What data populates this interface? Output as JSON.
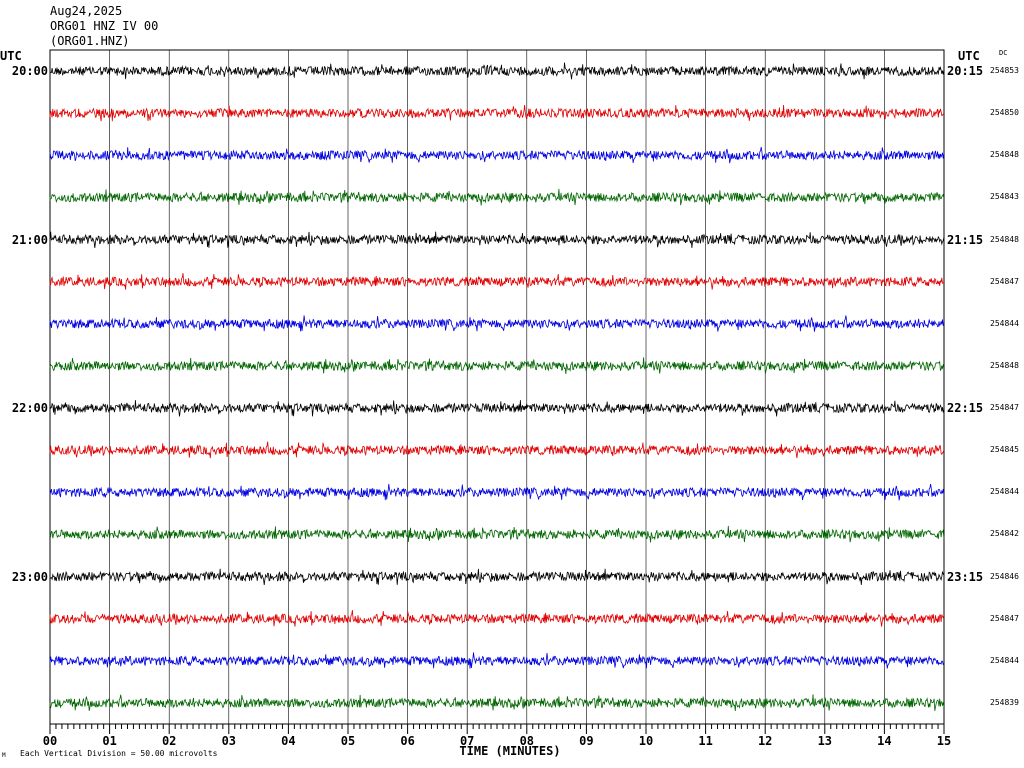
{
  "header": {
    "date": "Aug24,2025",
    "station": "ORG01 HNZ IV 00",
    "channel": "(ORG01.HNZ)"
  },
  "labels": {
    "utc_left": "UTC",
    "utc_right": "UTC",
    "dc": "DC",
    "footer": "Each Vertical Division =   50.00 microvolts",
    "mark": "M"
  },
  "chart_data": {
    "type": "line",
    "title": "",
    "xlabel": "TIME (MINUTES)",
    "ylabel": "",
    "xlim": [
      0,
      15
    ],
    "x_ticks": [
      "00",
      "01",
      "02",
      "03",
      "04",
      "05",
      "06",
      "07",
      "08",
      "09",
      "10",
      "11",
      "12",
      "13",
      "14",
      "15"
    ],
    "colors": [
      "#000000",
      "#e00000",
      "#0000e0",
      "#006600"
    ],
    "rows": [
      {
        "left": "20:00",
        "right": "20:15",
        "dc": "254853"
      },
      {
        "left": "",
        "right": "",
        "dc": "254850"
      },
      {
        "left": "",
        "right": "",
        "dc": "254848"
      },
      {
        "left": "",
        "right": "",
        "dc": "254843"
      },
      {
        "left": "21:00",
        "right": "21:15",
        "dc": "254848"
      },
      {
        "left": "",
        "right": "",
        "dc": "254847"
      },
      {
        "left": "",
        "right": "",
        "dc": "254844"
      },
      {
        "left": "",
        "right": "",
        "dc": "254848"
      },
      {
        "left": "22:00",
        "right": "22:15",
        "dc": "254847"
      },
      {
        "left": "",
        "right": "",
        "dc": "254845"
      },
      {
        "left": "",
        "right": "",
        "dc": "254844"
      },
      {
        "left": "",
        "right": "",
        "dc": "254842"
      },
      {
        "left": "23:00",
        "right": "23:15",
        "dc": "254846"
      },
      {
        "left": "",
        "right": "",
        "dc": "254847"
      },
      {
        "left": "",
        "right": "",
        "dc": "254844"
      },
      {
        "left": "",
        "right": "",
        "dc": "254839"
      }
    ]
  }
}
